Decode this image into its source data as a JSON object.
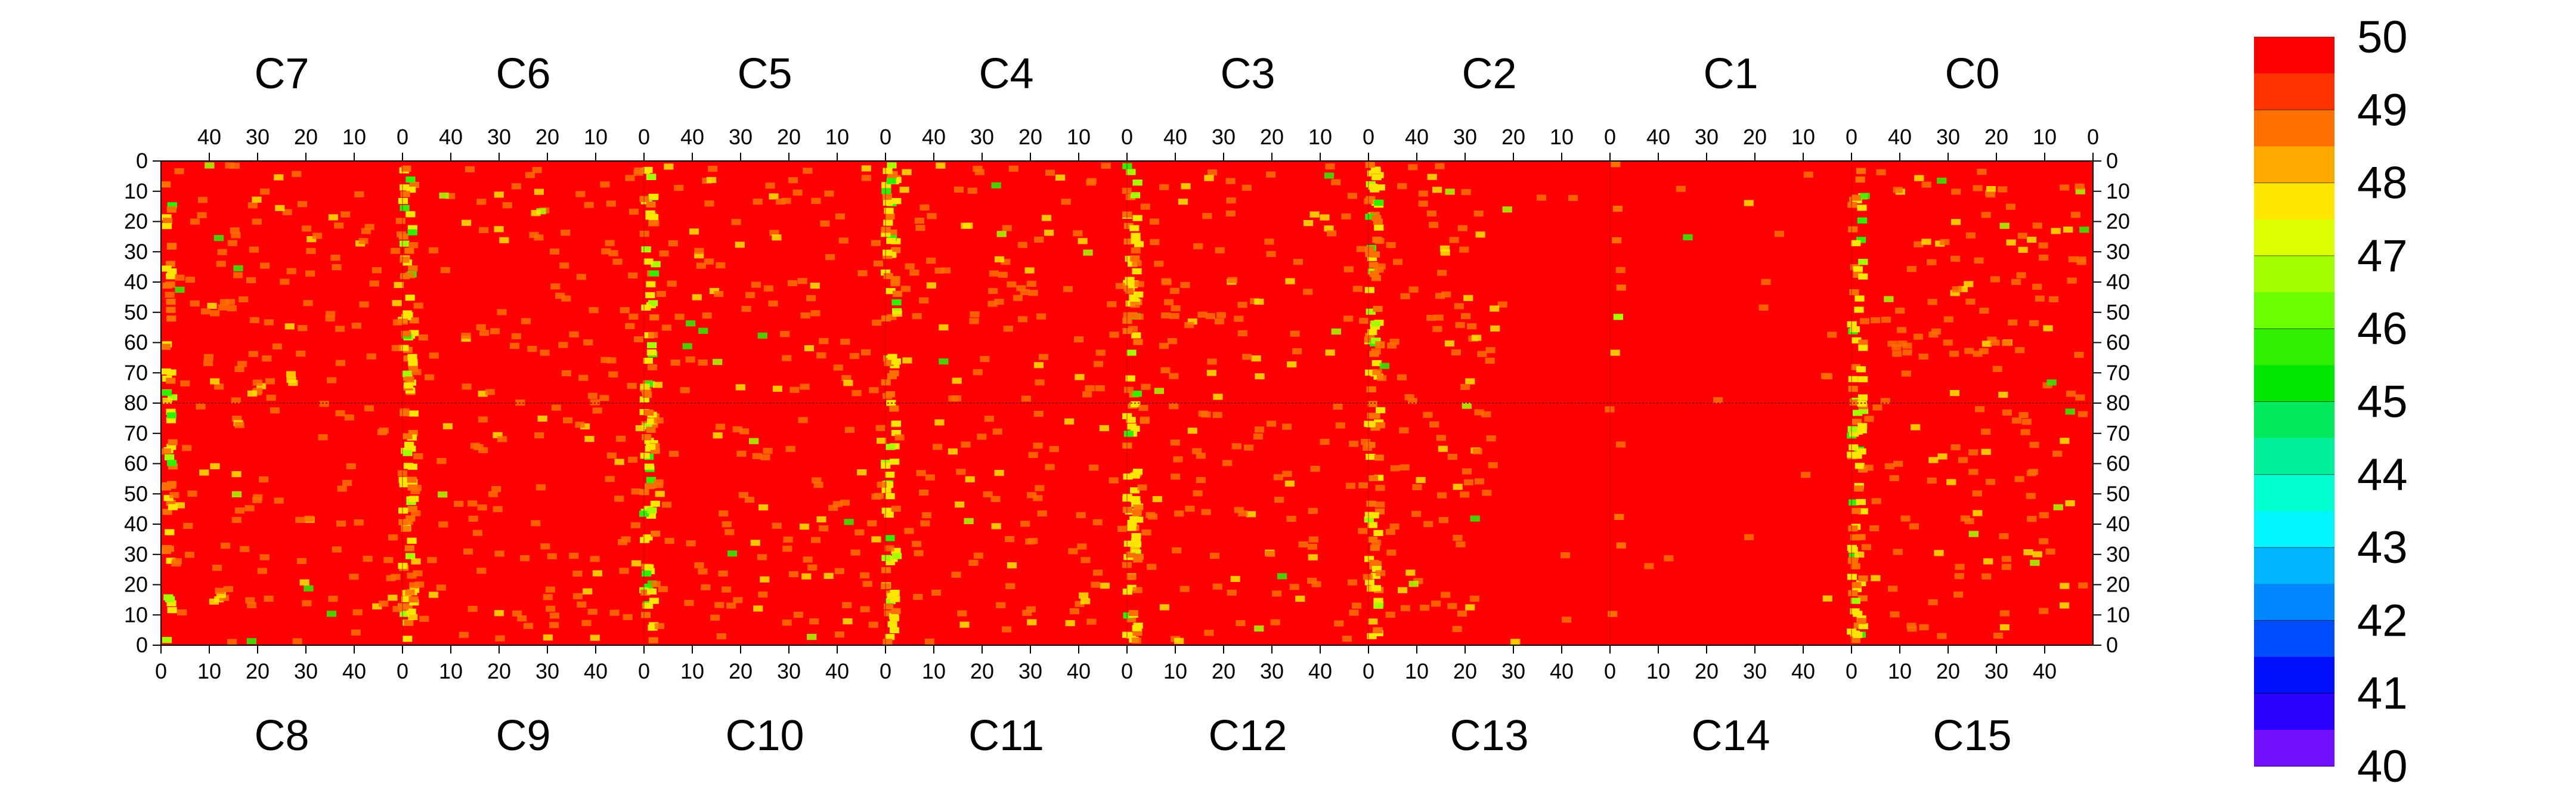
{
  "chart_data": {
    "type": "heatmap",
    "title": "",
    "colorbar": {
      "min": 40,
      "max": 50,
      "ticks": [
        50,
        49,
        48,
        47,
        46,
        45,
        44,
        43,
        42,
        41,
        40
      ],
      "colors": [
        "#ff0000",
        "#ff3300",
        "#ff7000",
        "#ffa800",
        "#ffe600",
        "#ddff00",
        "#a3ff00",
        "#6cff00",
        "#2ef000",
        "#00e600",
        "#00e85c",
        "#00f09a",
        "#00ffd0",
        "#00f6ff",
        "#00b4ff",
        "#0086ff",
        "#004dff",
        "#0010ff",
        "#2a00ff",
        "#7010ff"
      ]
    },
    "top_groups": [
      "C7",
      "C6",
      "C5",
      "C4",
      "C3",
      "C2",
      "C1",
      "C0"
    ],
    "bottom_groups": [
      "C8",
      "C9",
      "C10",
      "C11",
      "C12",
      "C13",
      "C14",
      "C15"
    ],
    "x_range_per_group": [
      0,
      50
    ],
    "top_x_ticks": [
      "40",
      "30",
      "20",
      "10",
      "0"
    ],
    "bottom_x_ticks": [
      "0",
      "10",
      "20",
      "30",
      "40"
    ],
    "y_range_top_half": [
      0,
      80
    ],
    "y_range_bottom_half": [
      80,
      0
    ],
    "y_ticks": [
      "0",
      "10",
      "20",
      "30",
      "40",
      "50",
      "60",
      "70",
      "80",
      "70",
      "60",
      "50",
      "40",
      "30",
      "20",
      "10",
      "0"
    ],
    "typical_value": 50,
    "hot_columns_note_values": {
      "column_edge_band_values": [
        48,
        49
      ],
      "scattered_low_values": [
        46,
        47,
        48
      ]
    },
    "grid": false
  }
}
